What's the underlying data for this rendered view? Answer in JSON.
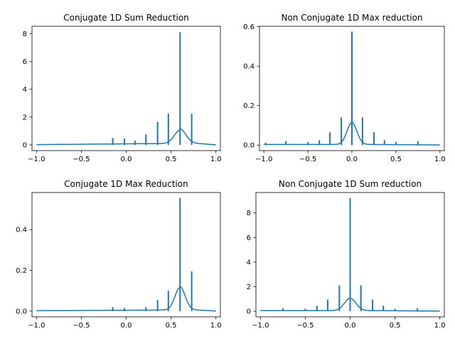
{
  "chart_data": [
    {
      "type": "line",
      "title": "Conjugate 1D Sum Reduction",
      "xlim": [
        -1.05,
        1.05
      ],
      "ylim": [
        -0.41,
        8.53
      ],
      "xticks": [
        -1.0,
        -0.5,
        0.0,
        0.5,
        1.0
      ],
      "xtick_labels": [
        "−1.0",
        "−0.5",
        "0.0",
        "0.5",
        "1.0"
      ],
      "yticks": [
        0,
        2,
        4,
        6,
        8
      ],
      "ytick_labels": [
        "0",
        "2",
        "4",
        "6",
        "8"
      ],
      "series_color": "#1f77b4",
      "bump": {
        "center": 0.6,
        "peak": 0.95,
        "width": 0.09,
        "baseline_left": 0.02,
        "baseline_right": 0.2
      },
      "spikes": [
        {
          "x": -0.15,
          "y": 0.5
        },
        {
          "x": -0.02,
          "y": 0.45
        },
        {
          "x": 0.1,
          "y": 0.3
        },
        {
          "x": 0.22,
          "y": 0.75
        },
        {
          "x": 0.35,
          "y": 1.65
        },
        {
          "x": 0.47,
          "y": 2.25
        },
        {
          "x": 0.6,
          "y": 8.1
        },
        {
          "x": 0.73,
          "y": 2.25
        }
      ]
    },
    {
      "type": "line",
      "title": "Non Conjugate 1D Max reduction",
      "xlim": [
        -1.05,
        1.05
      ],
      "ylim": [
        -0.028,
        0.602
      ],
      "xticks": [
        -1.0,
        -0.5,
        0.0,
        0.5,
        1.0
      ],
      "xtick_labels": [
        "−1.0",
        "−0.5",
        "0.0",
        "0.5",
        "1.0"
      ],
      "yticks": [
        0.0,
        0.2,
        0.4,
        0.6
      ],
      "ytick_labels": [
        "0.0",
        "0.2",
        "0.4",
        "0.6"
      ],
      "series_color": "#1f77b4",
      "bump": {
        "center": 0.0,
        "peak": 0.11,
        "width": 0.08,
        "baseline_left": 0.003,
        "baseline_right": 0.003
      },
      "spikes": [
        {
          "x": -0.98,
          "y": 0.012
        },
        {
          "x": -0.75,
          "y": 0.02
        },
        {
          "x": -0.5,
          "y": 0.015
        },
        {
          "x": -0.37,
          "y": 0.025
        },
        {
          "x": -0.25,
          "y": 0.065
        },
        {
          "x": -0.12,
          "y": 0.14
        },
        {
          "x": 0.0,
          "y": 0.575
        },
        {
          "x": 0.12,
          "y": 0.14
        },
        {
          "x": 0.25,
          "y": 0.065
        },
        {
          "x": 0.37,
          "y": 0.025
        },
        {
          "x": 0.5,
          "y": 0.015
        },
        {
          "x": 0.75,
          "y": 0.02
        }
      ]
    },
    {
      "type": "line",
      "title": "Conjugate 1D Max Reduction",
      "xlim": [
        -1.05,
        1.05
      ],
      "ylim": [
        -0.028,
        0.582
      ],
      "xticks": [
        -1.0,
        -0.5,
        0.0,
        0.5,
        1.0
      ],
      "xtick_labels": [
        "−1.0",
        "−0.5",
        "0.0",
        "0.5",
        "1.0"
      ],
      "yticks": [
        0.0,
        0.2,
        0.4
      ],
      "ytick_labels": [
        "0.0",
        "0.2",
        "0.4"
      ],
      "series_color": "#1f77b4",
      "bump": {
        "center": 0.6,
        "peak": 0.11,
        "width": 0.08,
        "baseline_left": 0.002,
        "baseline_right": 0.01
      },
      "spikes": [
        {
          "x": -0.15,
          "y": 0.02
        },
        {
          "x": -0.02,
          "y": 0.015
        },
        {
          "x": 0.22,
          "y": 0.02
        },
        {
          "x": 0.35,
          "y": 0.055
        },
        {
          "x": 0.47,
          "y": 0.1
        },
        {
          "x": 0.6,
          "y": 0.555
        },
        {
          "x": 0.73,
          "y": 0.195
        }
      ]
    },
    {
      "type": "line",
      "title": "Non Conjugate 1D Sum reduction",
      "xlim": [
        -1.05,
        1.05
      ],
      "ylim": [
        -0.46,
        9.66
      ],
      "xticks": [
        -1.0,
        -0.5,
        0.0,
        0.5,
        1.0
      ],
      "xtick_labels": [
        "−1.0",
        "−0.5",
        "0.0",
        "0.5",
        "1.0"
      ],
      "yticks": [
        0,
        2,
        4,
        6,
        8
      ],
      "ytick_labels": [
        "0",
        "2",
        "4",
        "6",
        "8"
      ],
      "series_color": "#1f77b4",
      "bump": {
        "center": 0.0,
        "peak": 1.0,
        "width": 0.09,
        "baseline_left": 0.05,
        "baseline_right": 0.05
      },
      "spikes": [
        {
          "x": -0.75,
          "y": 0.25
        },
        {
          "x": -0.5,
          "y": 0.2
        },
        {
          "x": -0.37,
          "y": 0.45
        },
        {
          "x": -0.25,
          "y": 0.95
        },
        {
          "x": -0.12,
          "y": 2.1
        },
        {
          "x": 0.0,
          "y": 9.2
        },
        {
          "x": 0.12,
          "y": 2.1
        },
        {
          "x": 0.25,
          "y": 0.95
        },
        {
          "x": 0.37,
          "y": 0.45
        },
        {
          "x": 0.5,
          "y": 0.2
        },
        {
          "x": 0.75,
          "y": 0.25
        }
      ]
    }
  ]
}
